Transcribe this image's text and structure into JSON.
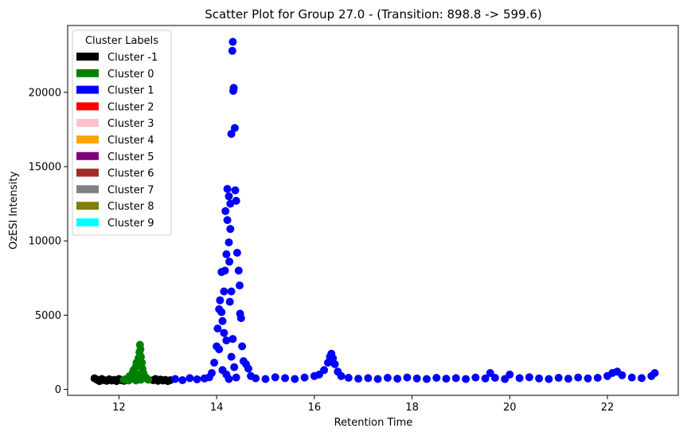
{
  "chart_data": {
    "type": "scatter",
    "title": "Scatter Plot for Group 27.0 -  (Transition: 898.8 -> 599.6)",
    "xlabel": "Retention Time",
    "ylabel": "OzESI Intensity",
    "xlim": [
      10.95,
      23.45
    ],
    "ylim": [
      -400,
      24500
    ],
    "xticks": [
      12,
      14,
      16,
      18,
      20,
      22
    ],
    "yticks": [
      0,
      5000,
      10000,
      15000,
      20000
    ],
    "legend": {
      "title": "Cluster Labels",
      "placement": "top-left",
      "entries": [
        {
          "label": "Cluster -1",
          "color": "#000000"
        },
        {
          "label": "Cluster 0",
          "color": "#008000"
        },
        {
          "label": "Cluster 1",
          "color": "#0000ff"
        },
        {
          "label": "Cluster 2",
          "color": "#ff0000"
        },
        {
          "label": "Cluster 3",
          "color": "#ffc0cb"
        },
        {
          "label": "Cluster 4",
          "color": "#ffa500"
        },
        {
          "label": "Cluster 5",
          "color": "#800080"
        },
        {
          "label": "Cluster 6",
          "color": "#a52a2a"
        },
        {
          "label": "Cluster 7",
          "color": "#808080"
        },
        {
          "label": "Cluster 8",
          "color": "#808000"
        },
        {
          "label": "Cluster 9",
          "color": "#00ffff"
        }
      ]
    },
    "series": [
      {
        "cluster": "-1",
        "color": "#000000",
        "points": [
          [
            11.5,
            750
          ],
          [
            11.55,
            650
          ],
          [
            11.6,
            560
          ],
          [
            11.65,
            700
          ],
          [
            11.7,
            620
          ],
          [
            11.75,
            580
          ],
          [
            11.8,
            680
          ],
          [
            11.85,
            600
          ],
          [
            11.9,
            640
          ],
          [
            11.95,
            560
          ],
          [
            12.0,
            700
          ],
          [
            12.05,
            620
          ],
          [
            12.1,
            580
          ],
          [
            12.7,
            620
          ],
          [
            12.75,
            700
          ],
          [
            12.8,
            580
          ],
          [
            12.85,
            660
          ],
          [
            12.9,
            600
          ],
          [
            12.95,
            640
          ],
          [
            13.0,
            560
          ],
          [
            13.05,
            620
          ]
        ]
      },
      {
        "cluster": "0",
        "color": "#008000",
        "points": [
          [
            12.1,
            650
          ],
          [
            12.15,
            700
          ],
          [
            12.2,
            600
          ],
          [
            12.22,
            900
          ],
          [
            12.25,
            750
          ],
          [
            12.28,
            1100
          ],
          [
            12.3,
            1300
          ],
          [
            12.32,
            800
          ],
          [
            12.34,
            1500
          ],
          [
            12.36,
            1800
          ],
          [
            12.38,
            1000
          ],
          [
            12.4,
            2100
          ],
          [
            12.42,
            2500
          ],
          [
            12.43,
            3000
          ],
          [
            12.44,
            2700
          ],
          [
            12.45,
            2200
          ],
          [
            12.47,
            1800
          ],
          [
            12.48,
            1400
          ],
          [
            12.5,
            1100
          ],
          [
            12.52,
            900
          ],
          [
            12.55,
            800
          ],
          [
            12.58,
            700
          ],
          [
            12.6,
            650
          ],
          [
            12.35,
            600
          ],
          [
            12.45,
            650
          ]
        ]
      },
      {
        "cluster": "1",
        "color": "#0000ff",
        "points": [
          [
            13.15,
            700
          ],
          [
            13.3,
            620
          ],
          [
            13.45,
            760
          ],
          [
            13.6,
            680
          ],
          [
            13.75,
            740
          ],
          [
            13.85,
            820
          ],
          [
            13.9,
            1100
          ],
          [
            13.95,
            1800
          ],
          [
            14.0,
            2900
          ],
          [
            14.02,
            4100
          ],
          [
            14.05,
            5400
          ],
          [
            14.07,
            6000
          ],
          [
            14.1,
            5200
          ],
          [
            14.12,
            4600
          ],
          [
            14.15,
            6600
          ],
          [
            14.17,
            8000
          ],
          [
            14.2,
            9100
          ],
          [
            14.22,
            11400
          ],
          [
            14.25,
            13000
          ],
          [
            14.28,
            10800
          ],
          [
            14.3,
            17200
          ],
          [
            14.32,
            22800
          ],
          [
            14.33,
            23400
          ],
          [
            14.35,
            20300
          ],
          [
            14.37,
            17600
          ],
          [
            14.38,
            13400
          ],
          [
            14.4,
            12700
          ],
          [
            14.42,
            9200
          ],
          [
            14.45,
            8000
          ],
          [
            14.47,
            7000
          ],
          [
            14.48,
            5100
          ],
          [
            14.5,
            4800
          ],
          [
            14.52,
            2900
          ],
          [
            14.55,
            1900
          ],
          [
            14.6,
            1700
          ],
          [
            14.65,
            1400
          ],
          [
            14.7,
            900
          ],
          [
            14.1,
            7900
          ],
          [
            14.18,
            12000
          ],
          [
            14.22,
            13500
          ],
          [
            14.25,
            9900
          ],
          [
            14.28,
            12500
          ],
          [
            14.3,
            6600
          ],
          [
            14.26,
            8600
          ],
          [
            14.34,
            20100
          ],
          [
            14.15,
            3800
          ],
          [
            14.2,
            3300
          ],
          [
            14.27,
            5900
          ],
          [
            14.3,
            2200
          ],
          [
            14.33,
            3400
          ],
          [
            14.36,
            1500
          ],
          [
            14.05,
            2700
          ],
          [
            14.12,
            1300
          ],
          [
            14.2,
            1000
          ],
          [
            14.25,
            700
          ],
          [
            14.4,
            800
          ],
          [
            14.8,
            750
          ],
          [
            15.0,
            700
          ],
          [
            15.2,
            820
          ],
          [
            15.4,
            760
          ],
          [
            15.6,
            700
          ],
          [
            15.8,
            800
          ],
          [
            16.0,
            900
          ],
          [
            16.1,
            1000
          ],
          [
            16.2,
            1300
          ],
          [
            16.28,
            1800
          ],
          [
            16.32,
            2200
          ],
          [
            16.35,
            2400
          ],
          [
            16.38,
            2100
          ],
          [
            16.42,
            1700
          ],
          [
            16.48,
            1200
          ],
          [
            16.55,
            900
          ],
          [
            16.7,
            780
          ],
          [
            16.9,
            720
          ],
          [
            17.1,
            760
          ],
          [
            17.3,
            700
          ],
          [
            17.5,
            780
          ],
          [
            17.7,
            720
          ],
          [
            17.9,
            800
          ],
          [
            18.1,
            740
          ],
          [
            18.3,
            700
          ],
          [
            18.5,
            780
          ],
          [
            18.7,
            720
          ],
          [
            18.9,
            760
          ],
          [
            19.1,
            700
          ],
          [
            19.3,
            800
          ],
          [
            19.5,
            740
          ],
          [
            19.6,
            1100
          ],
          [
            19.7,
            780
          ],
          [
            19.9,
            700
          ],
          [
            20.0,
            1000
          ],
          [
            20.2,
            760
          ],
          [
            20.4,
            820
          ],
          [
            20.6,
            740
          ],
          [
            20.8,
            700
          ],
          [
            21.0,
            780
          ],
          [
            21.2,
            720
          ],
          [
            21.4,
            800
          ],
          [
            21.6,
            740
          ],
          [
            21.8,
            780
          ],
          [
            22.0,
            900
          ],
          [
            22.1,
            1100
          ],
          [
            22.2,
            1200
          ],
          [
            22.3,
            950
          ],
          [
            22.5,
            800
          ],
          [
            22.7,
            760
          ],
          [
            22.9,
            900
          ],
          [
            22.97,
            1100
          ]
        ]
      }
    ]
  }
}
